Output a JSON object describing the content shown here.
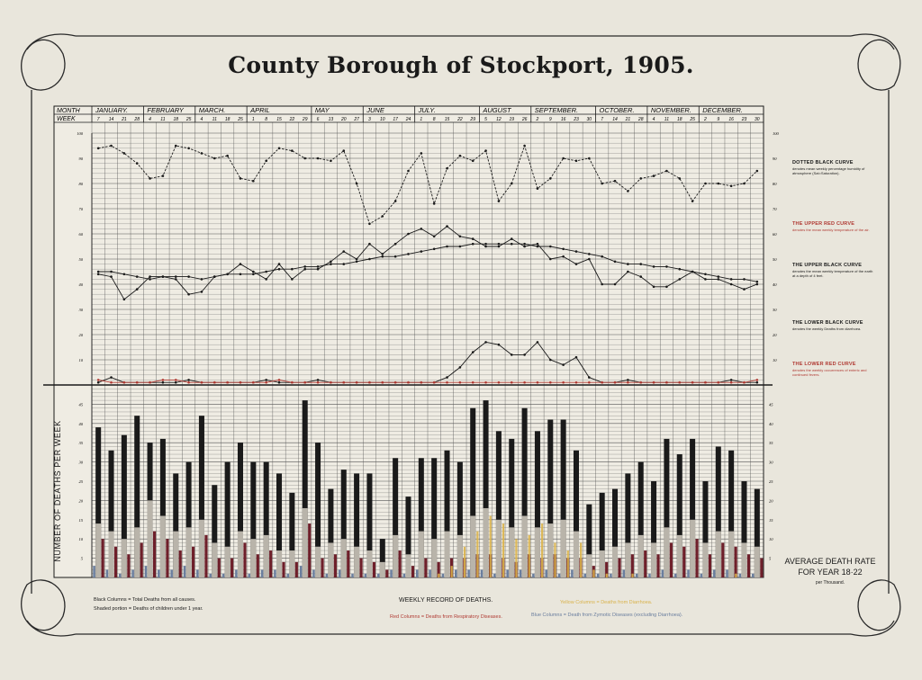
{
  "title": "County Borough of Stockport, 1905.",
  "header": {
    "month_label": "MONTH",
    "week_label": "WEEK",
    "months": [
      "JANUARY.",
      "FEBRUARY",
      "MARCH.",
      "APRIL",
      "MAY",
      "JUNE",
      "JULY.",
      "AUGUST",
      "SEPTEMBER.",
      "OCTOBER.",
      "NOVEMBER.",
      "DECEMBER."
    ],
    "week_days": [
      "7",
      "14",
      "21",
      "28",
      "4",
      "11",
      "18",
      "25",
      "4",
      "11",
      "18",
      "25",
      "1",
      "8",
      "15",
      "22",
      "29",
      "6",
      "13",
      "20",
      "27",
      "3",
      "10",
      "17",
      "24",
      "1",
      "8",
      "15",
      "22",
      "29",
      "5",
      "12",
      "19",
      "26",
      "2",
      "9",
      "16",
      "23",
      "30",
      "7",
      "14",
      "21",
      "28",
      "4",
      "11",
      "18",
      "25",
      "2",
      "9",
      "16",
      "23",
      "30"
    ]
  },
  "upper_scale_left": [
    "100",
    "90",
    "80",
    "70",
    "60",
    "50",
    "40",
    "30",
    "20",
    "10"
  ],
  "upper_scale_right": [
    "100",
    "90",
    "80",
    "70",
    "60",
    "50",
    "40",
    "30",
    "20",
    "10"
  ],
  "lower_scale": [
    "45",
    "40",
    "35",
    "30",
    "25",
    "20",
    "15",
    "10",
    "5"
  ],
  "y_axis_label": "NUMBER OF DEATHS PER WEEK",
  "legend": {
    "dotted_black": {
      "title": "DOTTED BLACK CURVE",
      "text": "denotes mean weekly percentage humidity of atmosphere (Sat=Saturation)."
    },
    "upper_red": {
      "title": "THE UPPER RED CURVE",
      "text": "denotes the mean weekly temperature of the air."
    },
    "upper_black": {
      "title": "THE UPPER BLACK CURVE",
      "text": "denotes the mean weekly temperature of the earth at a depth of 4 feet."
    },
    "lower_black": {
      "title": "THE LOWER BLACK CURVE",
      "text": "denotes the weekly Deaths from diarrhoea."
    },
    "lower_red": {
      "title": "THE LOWER RED CURVE",
      "text": "denotes the weekly occurrences of enteric and continued fevers."
    }
  },
  "footer": {
    "black_columns": "Black Columns = Total Deaths from all causes.",
    "shaded": "Shaded portion = Deaths of children under 1 year.",
    "weekly_record": "WEEKLY RECORD OF DEATHS.",
    "red_columns": "Red Columns = Deaths from Respiratory Diseases.",
    "yellow_columns": "Yellow Columns = Deaths from Diarrhoea.",
    "blue_columns": "Blue Columns = Death from Zymotic Diseases (excluding Diarrhoea)."
  },
  "average": {
    "line1": "AVERAGE DEATH RATE",
    "line2": "FOR YEAR 18·22",
    "line3": "per Thousand."
  },
  "colors": {
    "paper": "#e9e6dc",
    "ink": "#1a1a1a",
    "red": "#b03a33",
    "maroon": "#6e1f2a",
    "yellow": "#d9b24a",
    "blue": "#6a7e9e",
    "grid": "#555555"
  },
  "chart_data": [
    {
      "type": "line",
      "title": "County Borough of Stockport, 1905.",
      "x": [
        "7",
        "14",
        "21",
        "28",
        "4",
        "11",
        "18",
        "25",
        "4",
        "11",
        "18",
        "25",
        "1",
        "8",
        "15",
        "22",
        "29",
        "6",
        "13",
        "20",
        "27",
        "3",
        "10",
        "17",
        "24",
        "1",
        "8",
        "15",
        "22",
        "29",
        "5",
        "12",
        "19",
        "26",
        "2",
        "9",
        "16",
        "23",
        "30",
        "7",
        "14",
        "21",
        "28",
        "4",
        "11",
        "18",
        "25",
        "2",
        "9",
        "16",
        "23",
        "30"
      ],
      "ylim": [
        0,
        100
      ],
      "series": [
        {
          "name": "DOTTED BLACK CURVE",
          "color": "#1a1a1a",
          "dotted": true,
          "values": [
            94,
            95,
            92,
            88,
            82,
            83,
            95,
            94,
            92,
            90,
            91,
            82,
            81,
            89,
            94,
            93,
            90,
            90,
            89,
            93,
            80,
            64,
            67,
            73,
            85,
            92,
            72,
            86,
            91,
            89,
            93,
            73,
            80,
            95,
            78,
            82,
            90,
            89,
            90,
            80,
            81,
            77,
            82,
            83,
            85,
            82,
            73,
            80,
            80,
            79,
            80,
            85
          ]
        },
        {
          "name": "THE UPPER RED CURVE",
          "color": "#1a1a1a",
          "dotted": false,
          "values": [
            44,
            43,
            34,
            38,
            43,
            43,
            42,
            36,
            37,
            43,
            44,
            48,
            45,
            42,
            48,
            42,
            46,
            46,
            49,
            53,
            50,
            56,
            52,
            56,
            60,
            62,
            59,
            63,
            59,
            58,
            55,
            55,
            58,
            55,
            56,
            50,
            51,
            48,
            50,
            40,
            40,
            45,
            43,
            39,
            39,
            42,
            45,
            42,
            42,
            40,
            38,
            40
          ]
        },
        {
          "name": "THE UPPER BLACK CURVE",
          "color": "#1a1a1a",
          "dotted": false,
          "values": [
            45,
            45,
            44,
            43,
            42,
            43,
            43,
            43,
            42,
            43,
            44,
            44,
            44,
            45,
            46,
            46,
            47,
            47,
            48,
            48,
            49,
            50,
            51,
            51,
            52,
            53,
            54,
            55,
            55,
            56,
            56,
            56,
            56,
            56,
            55,
            55,
            54,
            53,
            52,
            51,
            49,
            48,
            48,
            47,
            47,
            46,
            45,
            44,
            43,
            42,
            42,
            41
          ]
        },
        {
          "name": "THE LOWER BLACK CURVE",
          "color": "#1a1a1a",
          "dotted": false,
          "values": [
            1,
            3,
            1,
            1,
            1,
            1,
            1,
            2,
            1,
            1,
            1,
            1,
            1,
            2,
            1,
            1,
            1,
            2,
            1,
            1,
            1,
            1,
            1,
            1,
            1,
            1,
            1,
            3,
            7,
            13,
            17,
            16,
            12,
            12,
            17,
            10,
            8,
            11,
            3,
            1,
            1,
            2,
            1,
            1,
            1,
            1,
            1,
            1,
            1,
            2,
            1,
            1
          ]
        },
        {
          "name": "THE LOWER RED CURVE",
          "color": "#b03a33",
          "dotted": false,
          "values": [
            2,
            1,
            1,
            1,
            1,
            2,
            2,
            1,
            1,
            1,
            1,
            1,
            1,
            1,
            2,
            1,
            1,
            1,
            1,
            1,
            1,
            1,
            1,
            1,
            1,
            1,
            1,
            1,
            1,
            1,
            1,
            1,
            1,
            1,
            1,
            1,
            1,
            1,
            1,
            1,
            1,
            1,
            1,
            1,
            1,
            1,
            1,
            1,
            1,
            1,
            1,
            2
          ]
        }
      ]
    },
    {
      "type": "bar",
      "title": "WEEKLY RECORD OF DEATHS.",
      "ylabel": "NUMBER OF DEATHS PER WEEK",
      "ylim": [
        0,
        50
      ],
      "categories": [
        "7",
        "14",
        "21",
        "28",
        "4",
        "11",
        "18",
        "25",
        "4",
        "11",
        "18",
        "25",
        "1",
        "8",
        "15",
        "22",
        "29",
        "6",
        "13",
        "20",
        "27",
        "3",
        "10",
        "17",
        "24",
        "1",
        "8",
        "15",
        "22",
        "29",
        "5",
        "12",
        "19",
        "26",
        "2",
        "9",
        "16",
        "23",
        "30",
        "7",
        "14",
        "21",
        "28",
        "4",
        "11",
        "18",
        "25",
        "2",
        "9",
        "16",
        "23",
        "30"
      ],
      "series": [
        {
          "name": "Black Columns = Total Deaths from all causes.",
          "color": "#1a1a1a",
          "values": [
            39,
            33,
            37,
            42,
            35,
            36,
            27,
            30,
            42,
            24,
            30,
            35,
            30,
            30,
            27,
            22,
            46,
            35,
            23,
            28,
            27,
            27,
            10,
            31,
            21,
            31,
            31,
            33,
            30,
            44,
            46,
            38,
            36,
            44,
            38,
            41,
            41,
            33,
            19,
            22,
            23,
            27,
            30,
            25,
            36,
            32,
            36,
            25,
            34,
            33,
            25,
            23
          ]
        },
        {
          "name": "Shaded portion = Deaths of children under 1 year.",
          "color": "#d6d0c4",
          "values": [
            14,
            12,
            10,
            13,
            20,
            16,
            12,
            13,
            15,
            9,
            8,
            12,
            10,
            11,
            7,
            7,
            18,
            8,
            9,
            10,
            8,
            7,
            4,
            11,
            6,
            12,
            10,
            12,
            11,
            16,
            18,
            15,
            13,
            16,
            13,
            14,
            15,
            12,
            6,
            7,
            8,
            9,
            11,
            9,
            13,
            11,
            15,
            9,
            12,
            12,
            9,
            8
          ]
        },
        {
          "name": "Red Columns = Deaths from Respiratory Diseases.",
          "color": "#6e1f2a",
          "values": [
            10,
            8,
            6,
            9,
            12,
            10,
            7,
            8,
            11,
            5,
            5,
            9,
            6,
            7,
            4,
            4,
            14,
            5,
            6,
            7,
            5,
            4,
            2,
            7,
            3,
            5,
            4,
            5,
            5,
            6,
            6,
            5,
            4,
            6,
            5,
            6,
            5,
            5,
            3,
            4,
            5,
            6,
            7,
            6,
            9,
            8,
            10,
            6,
            9,
            8,
            6,
            5
          ]
        },
        {
          "name": "Yellow Columns = Deaths from Diarrhoea.",
          "color": "#d9b24a",
          "values": [
            0,
            0,
            0,
            0,
            0,
            0,
            0,
            0,
            0,
            0,
            0,
            0,
            0,
            0,
            0,
            0,
            0,
            0,
            0,
            0,
            0,
            0,
            0,
            0,
            0,
            0,
            1,
            3,
            8,
            12,
            16,
            14,
            10,
            11,
            14,
            9,
            7,
            9,
            2,
            1,
            0,
            1,
            0,
            0,
            0,
            0,
            0,
            0,
            0,
            1,
            0,
            0
          ]
        },
        {
          "name": "Blue Columns = Death from Zymotic Diseases (excluding Diarrhoea).",
          "color": "#6a7e9e",
          "values": [
            3,
            2,
            1,
            2,
            3,
            2,
            2,
            3,
            2,
            1,
            1,
            2,
            1,
            2,
            2,
            1,
            3,
            2,
            1,
            2,
            1,
            1,
            1,
            2,
            1,
            2,
            2,
            1,
            2,
            2,
            2,
            1,
            2,
            2,
            1,
            2,
            1,
            2,
            1,
            1,
            1,
            2,
            1,
            1,
            2,
            1,
            2,
            1,
            2,
            2,
            1,
            1
          ]
        }
      ]
    }
  ]
}
